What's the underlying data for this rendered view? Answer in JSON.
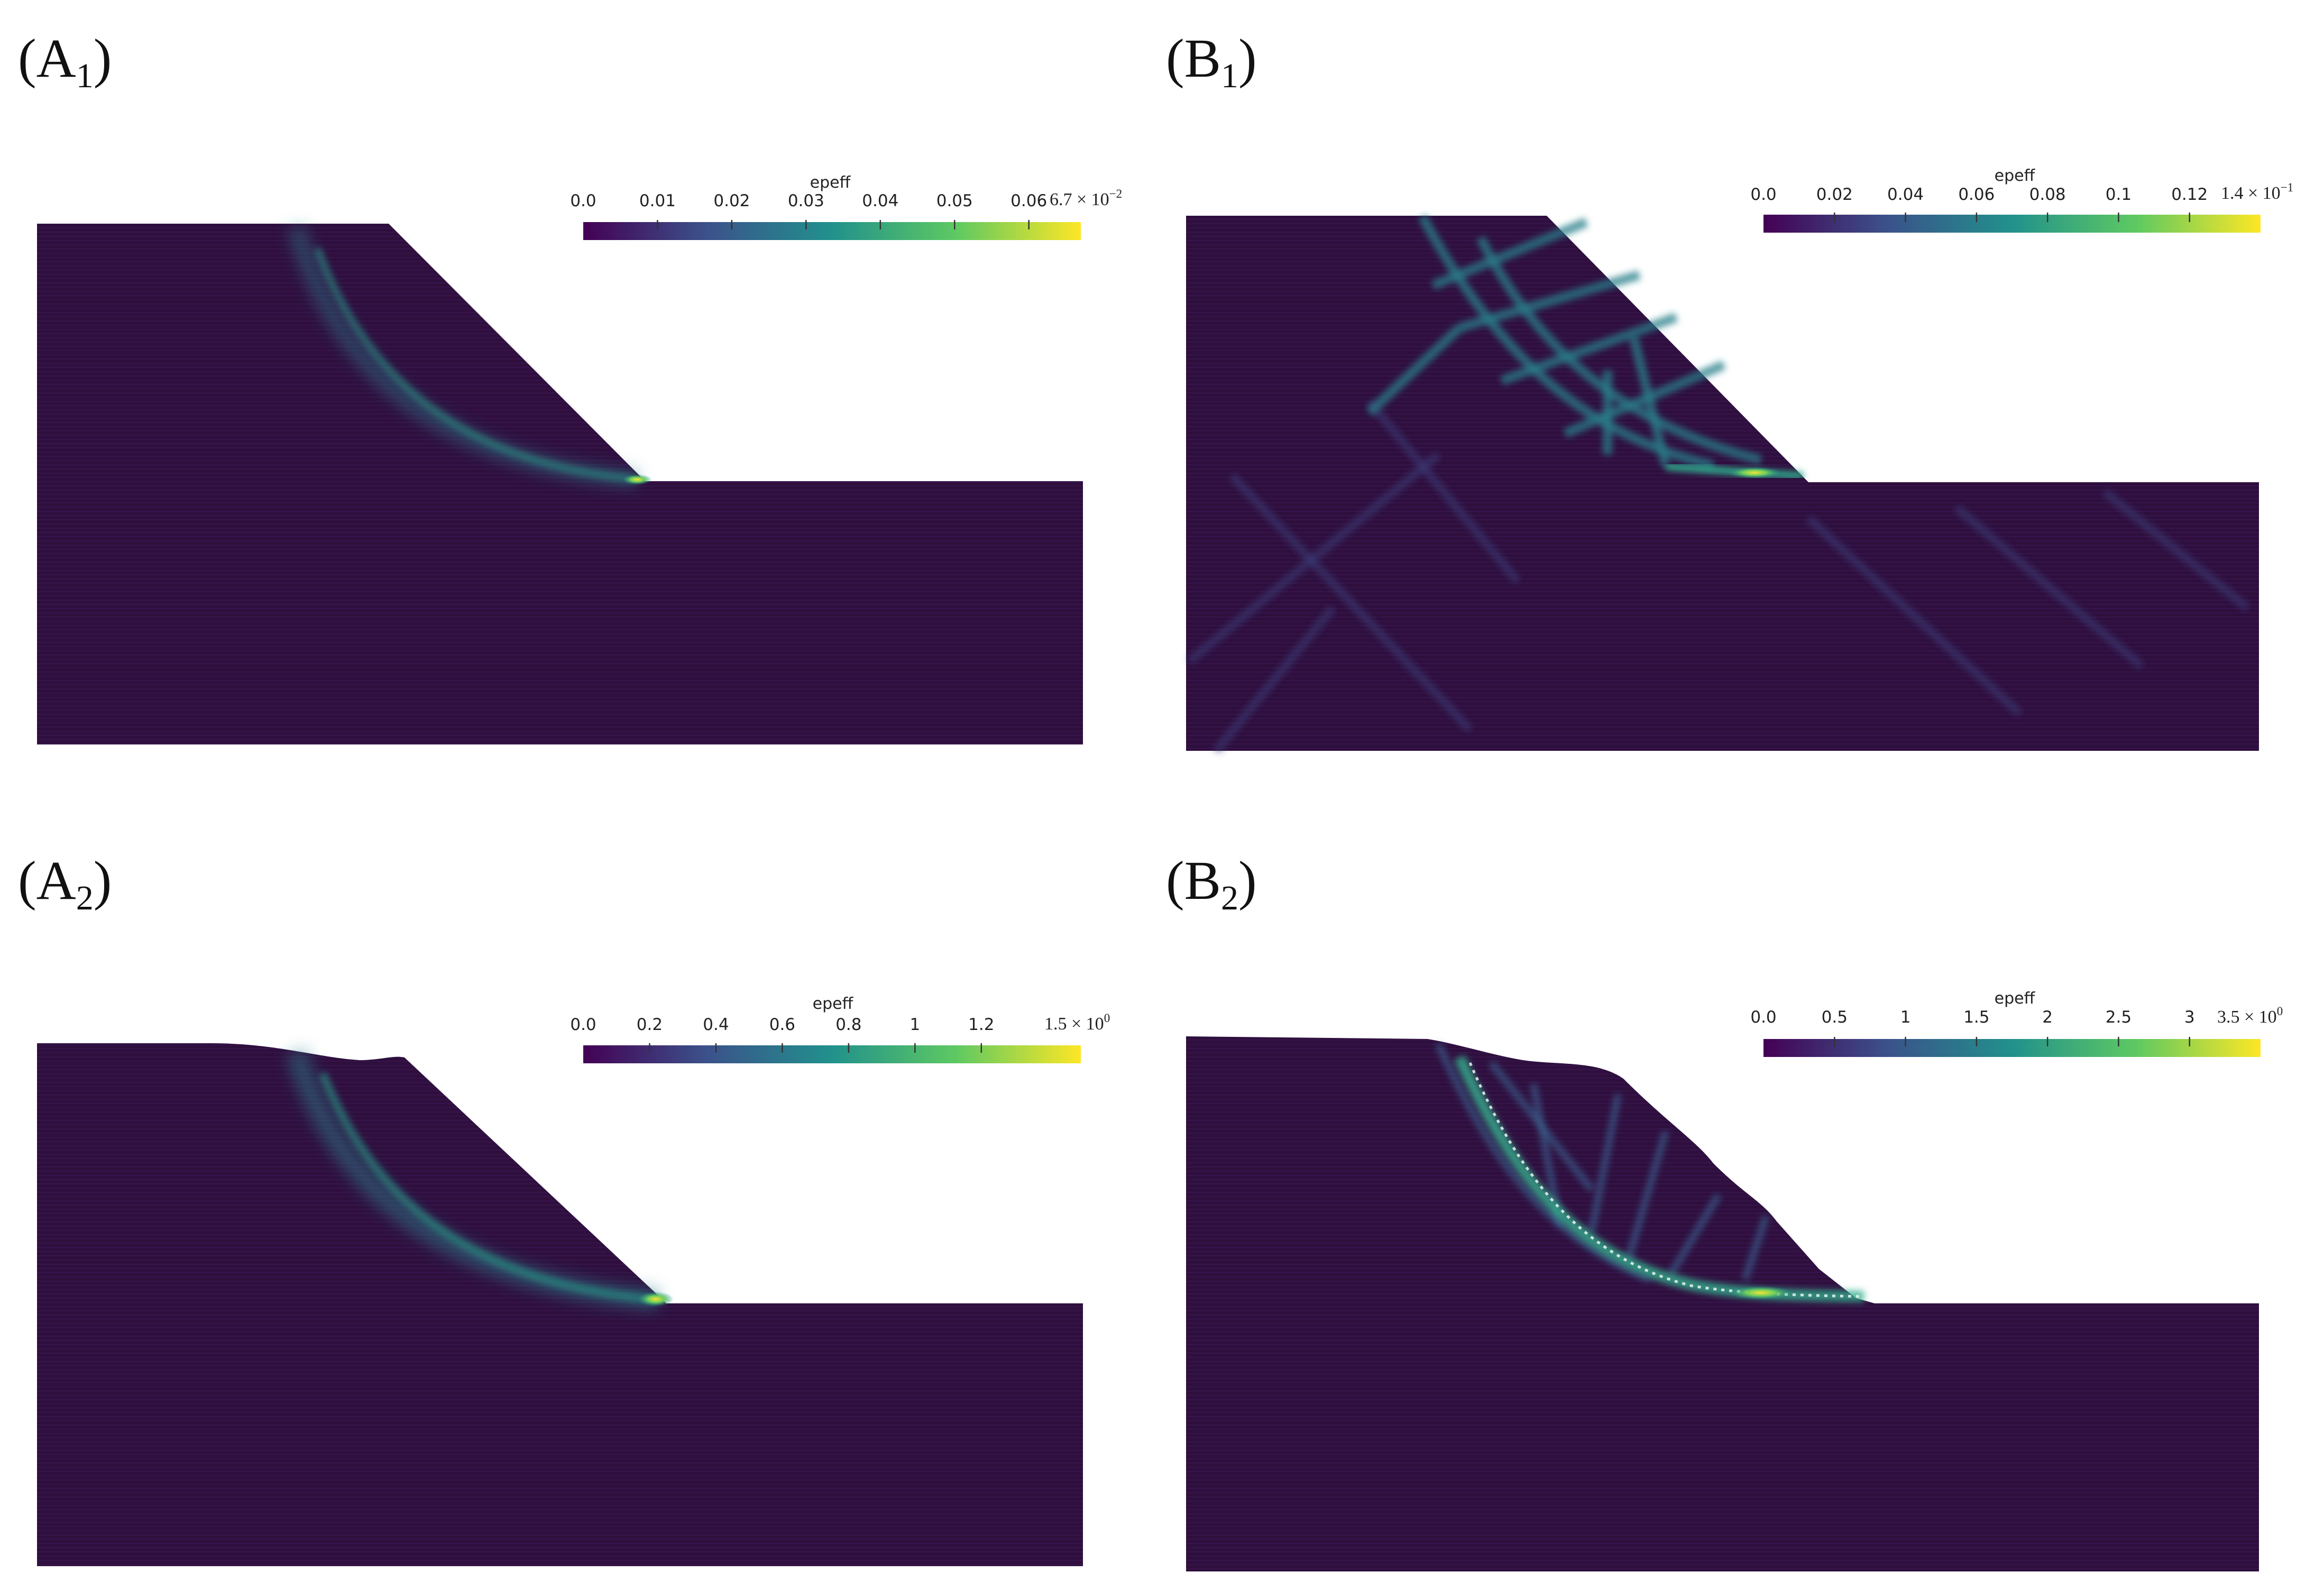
{
  "figure": {
    "panels": [
      {
        "id": "A1",
        "label_main": "(A",
        "label_sub": "1",
        "label_close": ")",
        "colorbar": {
          "title": "epeff",
          "ticks": [
            "0.0",
            "0.01",
            "0.02",
            "0.03",
            "0.04",
            "0.05",
            "0.06"
          ],
          "tick_values": [
            0,
            0.01,
            0.02,
            0.03,
            0.04,
            0.05,
            0.06
          ],
          "max_value": 0.067,
          "max_label_base": "6.7 × 10",
          "max_label_exp": "−2"
        },
        "slope_profile": "planar",
        "shear_band": "single",
        "max_location": "slope-toe"
      },
      {
        "id": "B1",
        "label_main": "(B",
        "label_sub": "1",
        "label_close": ")",
        "colorbar": {
          "title": "epeff",
          "ticks": [
            "0.0",
            "0.02",
            "0.04",
            "0.06",
            "0.08",
            "0.1",
            "0.12"
          ],
          "tick_values": [
            0,
            0.02,
            0.04,
            0.06,
            0.08,
            0.1,
            0.12
          ],
          "max_value": 0.14,
          "max_label_base": "1.4 × 10",
          "max_label_exp": "−1"
        },
        "slope_profile": "planar",
        "shear_band": "multiple-crossing",
        "max_location": "slope-toe"
      },
      {
        "id": "A2",
        "label_main": "(A",
        "label_sub": "2",
        "label_close": ")",
        "colorbar": {
          "title": "epeff",
          "ticks": [
            "0.0",
            "0.2",
            "0.4",
            "0.6",
            "0.8",
            "1",
            "1.2"
          ],
          "tick_values": [
            0,
            0.2,
            0.4,
            0.6,
            0.8,
            1.0,
            1.2
          ],
          "max_value": 1.5,
          "max_label_base": "1.5 × 10",
          "max_label_exp": "0"
        },
        "slope_profile": "deformed",
        "shear_band": "single",
        "max_location": "slope-toe"
      },
      {
        "id": "B2",
        "label_main": "(B",
        "label_sub": "2",
        "label_close": ")",
        "colorbar": {
          "title": "epeff",
          "ticks": [
            "0.0",
            "0.5",
            "1",
            "1.5",
            "2",
            "2.5",
            "3"
          ],
          "tick_values": [
            0,
            0.5,
            1.0,
            1.5,
            2.0,
            2.5,
            3.0
          ],
          "max_value": 3.5,
          "max_label_base": "3.5 × 10",
          "max_label_exp": "0"
        },
        "slope_profile": "failed",
        "shear_band": "fragmented",
        "max_location": "slope-toe"
      }
    ],
    "colormap": [
      "#440154",
      "#3b528b",
      "#21918c",
      "#5ec962",
      "#fde725"
    ],
    "background_material_color": "#2e0f3d",
    "band_color": "#2d8c8a",
    "hot_color": "#f0e030"
  }
}
